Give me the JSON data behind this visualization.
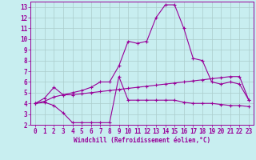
{
  "xlabel": "Windchill (Refroidissement éolien,°C)",
  "background_color": "#c8eef0",
  "grid_color": "#aacccc",
  "line_color": "#990099",
  "xlim": [
    -0.5,
    23.5
  ],
  "ylim": [
    2,
    13.5
  ],
  "xticks": [
    0,
    1,
    2,
    3,
    4,
    5,
    6,
    7,
    8,
    9,
    10,
    11,
    12,
    13,
    14,
    15,
    16,
    17,
    18,
    19,
    20,
    21,
    22,
    23
  ],
  "yticks": [
    2,
    3,
    4,
    5,
    6,
    7,
    8,
    9,
    10,
    11,
    12,
    13
  ],
  "line1_x": [
    0,
    1,
    2,
    3,
    4,
    5,
    6,
    7,
    8,
    9,
    10,
    11,
    12,
    13,
    14,
    15,
    16,
    17,
    18,
    19,
    20,
    21,
    22,
    23
  ],
  "line1_y": [
    4.0,
    4.1,
    3.8,
    3.1,
    2.2,
    2.2,
    2.2,
    2.2,
    2.2,
    6.5,
    4.3,
    4.3,
    4.3,
    4.3,
    4.3,
    4.3,
    4.1,
    4.0,
    4.0,
    4.0,
    3.9,
    3.8,
    3.8,
    3.7
  ],
  "line2_x": [
    0,
    1,
    2,
    3,
    4,
    5,
    6,
    7,
    8,
    9,
    10,
    11,
    12,
    13,
    14,
    15,
    16,
    17,
    18,
    19,
    20,
    21,
    22,
    23
  ],
  "line2_y": [
    4.0,
    4.2,
    4.6,
    4.8,
    4.8,
    4.9,
    5.0,
    5.1,
    5.2,
    5.3,
    5.4,
    5.5,
    5.6,
    5.7,
    5.8,
    5.9,
    6.0,
    6.1,
    6.2,
    6.3,
    6.4,
    6.5,
    6.5,
    4.3
  ],
  "line3_x": [
    0,
    1,
    2,
    3,
    4,
    5,
    6,
    7,
    8,
    9,
    10,
    11,
    12,
    13,
    14,
    15,
    16,
    17,
    18,
    19,
    20,
    21,
    22,
    23
  ],
  "line3_y": [
    4.0,
    4.5,
    5.5,
    4.8,
    5.0,
    5.2,
    5.5,
    6.0,
    6.0,
    7.5,
    9.8,
    9.6,
    9.8,
    12.0,
    13.2,
    13.2,
    11.0,
    8.2,
    8.0,
    6.0,
    5.8,
    6.0,
    5.8,
    4.3
  ],
  "marker": "+",
  "markersize": 3,
  "linewidth": 0.8,
  "tick_fontsize": 5.5,
  "xlabel_fontsize": 5.5
}
